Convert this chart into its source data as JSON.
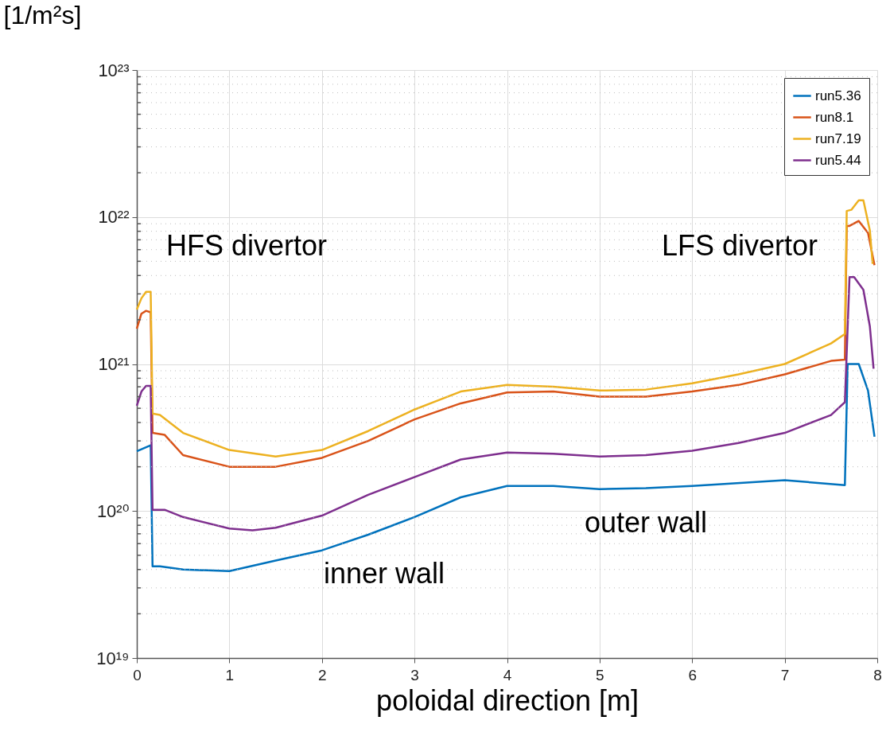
{
  "chart_data": {
    "type": "line",
    "xlabel": "poloidal direction [m]",
    "ylabel": "[1/m²s]",
    "log": "y",
    "grid": true,
    "legend": "top right",
    "line_style": "solid",
    "xlim": [
      0,
      8
    ],
    "xticks": [
      0,
      1,
      2,
      3,
      4,
      5,
      6,
      7,
      8
    ],
    "ylim": [
      1e+19,
      1e+23
    ],
    "yticks": [
      {
        "value": 1e+19,
        "label": "10¹⁹"
      },
      {
        "value": 1e+20,
        "label": "10²⁰"
      },
      {
        "value": 1e+21,
        "label": "10²¹"
      },
      {
        "value": 1e+22,
        "label": "10²²"
      },
      {
        "value": 1e+23,
        "label": "10²³"
      }
    ],
    "annotations": [
      "HFS divertor",
      "LFS divertor",
      "inner wall",
      "outer wall"
    ],
    "series": [
      {
        "name": "run5.36",
        "color": "#0072bd",
        "x": [
          0,
          0.15,
          0.17,
          0.25,
          0.5,
          1,
          1.5,
          2,
          2.5,
          3,
          3.5,
          4,
          4.5,
          5,
          5.5,
          6,
          7,
          7.65,
          7.68,
          7.8,
          7.9,
          7.97
        ],
        "values": [
          2.55e+20,
          2.8e+20,
          4.2e+19,
          4.2e+19,
          4e+19,
          3.9e+19,
          4.6e+19,
          5.4e+19,
          6.9e+19,
          9.1e+19,
          1.24e+20,
          1.48e+20,
          1.48e+20,
          1.41e+20,
          1.43e+20,
          1.48e+20,
          1.62e+20,
          1.5e+20,
          1e+21,
          1e+21,
          6.6e+20,
          3.2e+20
        ]
      },
      {
        "name": "run8.1",
        "color": "#d95319",
        "x": [
          0,
          0.05,
          0.1,
          0.15,
          0.17,
          0.3,
          0.5,
          1,
          1.5,
          2,
          2.5,
          3,
          3.5,
          4,
          4.5,
          5,
          5.5,
          6,
          6.5,
          7,
          7.5,
          7.65,
          7.67,
          7.7,
          7.8,
          7.9,
          7.97
        ],
        "values": [
          1.74e+21,
          2.2e+21,
          2.3e+21,
          2.25e+21,
          3.4e+20,
          3.3e+20,
          2.4e+20,
          2e+20,
          2e+20,
          2.3e+20,
          3e+20,
          4.2e+20,
          5.4e+20,
          6.4e+20,
          6.5e+20,
          6e+20,
          6e+20,
          6.5e+20,
          7.2e+20,
          8.5e+20,
          1.05e+21,
          1.07e+21,
          8.7e+21,
          8.7e+21,
          9.4e+21,
          7.8e+21,
          4.7e+21
        ]
      },
      {
        "name": "run7.19",
        "color": "#edb120",
        "x": [
          0,
          0.05,
          0.1,
          0.15,
          0.17,
          0.25,
          0.5,
          1,
          1.5,
          2,
          2.5,
          3,
          3.5,
          4,
          4.5,
          5,
          5.5,
          6,
          6.5,
          7,
          7.5,
          7.65,
          7.67,
          7.72,
          7.8,
          7.85,
          7.92,
          7.95
        ],
        "values": [
          2.35e+21,
          2.8e+21,
          3.1e+21,
          3.1e+21,
          4.6e+20,
          4.5e+20,
          3.4e+20,
          2.6e+20,
          2.35e+20,
          2.6e+20,
          3.5e+20,
          4.9e+20,
          6.5e+20,
          7.2e+20,
          7e+20,
          6.6e+20,
          6.7e+20,
          7.4e+20,
          8.5e+20,
          1e+21,
          1.38e+21,
          1.6e+21,
          1.1e+22,
          1.12e+22,
          1.3e+22,
          1.3e+22,
          8.1e+21,
          4.8e+21
        ]
      },
      {
        "name": "run5.44",
        "color": "#7e2f8e",
        "x": [
          0,
          0.05,
          0.1,
          0.15,
          0.17,
          0.3,
          0.5,
          1,
          1.25,
          1.5,
          2,
          2.5,
          3,
          3.5,
          4,
          4.5,
          5,
          5.5,
          6,
          6.5,
          7,
          7.5,
          7.65,
          7.7,
          7.75,
          7.85,
          7.92,
          7.96
        ],
        "values": [
          5.2e+20,
          6.5e+20,
          7.1e+20,
          7.1e+20,
          1.02e+20,
          1.02e+20,
          9.1e+19,
          7.6e+19,
          7.4e+19,
          7.7e+19,
          9.3e+19,
          1.29e+20,
          1.7e+20,
          2.24e+20,
          2.5e+20,
          2.45e+20,
          2.35e+20,
          2.4e+20,
          2.57e+20,
          2.9e+20,
          3.4e+20,
          4.5e+20,
          5.5e+20,
          3.9e+21,
          3.9e+21,
          3.2e+21,
          1.8e+21,
          9.3e+20
        ]
      }
    ]
  }
}
